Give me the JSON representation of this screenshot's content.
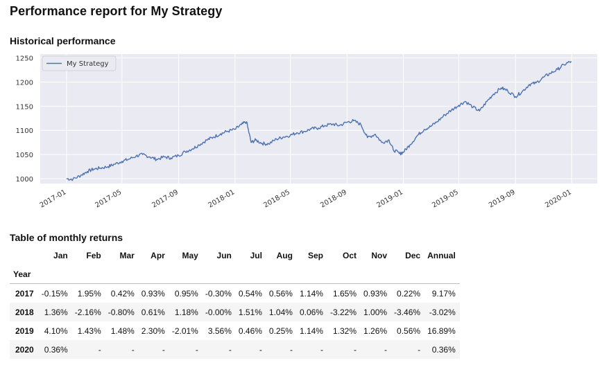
{
  "page": {
    "title": "Performance report for My Strategy",
    "historical_title": "Historical performance",
    "table_title": "Table of monthly returns"
  },
  "colors": {
    "plot_bg": "#eaeaf2",
    "line": "#4c72b0",
    "grid": "#ffffff",
    "row_alt": "#f5f5f5"
  },
  "chart_data": {
    "type": "line",
    "series": [
      {
        "name": "My Strategy",
        "x": [
          "2017-01-01",
          "2017-01-15",
          "2017-02-01",
          "2017-02-15",
          "2017-03-01",
          "2017-03-15",
          "2017-04-01",
          "2017-04-15",
          "2017-05-01",
          "2017-05-15",
          "2017-06-01",
          "2017-06-15",
          "2017-07-01",
          "2017-07-15",
          "2017-08-01",
          "2017-08-15",
          "2017-09-01",
          "2017-09-15",
          "2017-10-01",
          "2017-10-15",
          "2017-11-01",
          "2017-11-15",
          "2017-12-01",
          "2017-12-15",
          "2018-01-01",
          "2018-01-15",
          "2018-01-26",
          "2018-02-05",
          "2018-02-15",
          "2018-03-01",
          "2018-03-15",
          "2018-04-01",
          "2018-04-15",
          "2018-05-01",
          "2018-05-15",
          "2018-06-01",
          "2018-06-15",
          "2018-07-01",
          "2018-07-15",
          "2018-08-01",
          "2018-08-15",
          "2018-09-01",
          "2018-09-15",
          "2018-10-01",
          "2018-10-15",
          "2018-11-01",
          "2018-11-15",
          "2018-12-01",
          "2018-12-10",
          "2018-12-24",
          "2019-01-01",
          "2019-01-15",
          "2019-02-01",
          "2019-02-15",
          "2019-03-01",
          "2019-03-15",
          "2019-04-01",
          "2019-04-15",
          "2019-05-01",
          "2019-05-15",
          "2019-06-01",
          "2019-06-15",
          "2019-07-01",
          "2019-07-15",
          "2019-08-01",
          "2019-08-15",
          "2019-09-01",
          "2019-09-15",
          "2019-10-01",
          "2019-10-15",
          "2019-11-01",
          "2019-11-15",
          "2019-12-01",
          "2019-12-15",
          "2019-12-31"
        ],
        "values": [
          1000,
          999,
          1007,
          1015,
          1020,
          1022,
          1025,
          1030,
          1036,
          1040,
          1047,
          1050,
          1045,
          1040,
          1045,
          1043,
          1048,
          1056,
          1062,
          1070,
          1080,
          1086,
          1093,
          1098,
          1102,
          1112,
          1118,
          1075,
          1080,
          1073,
          1072,
          1082,
          1086,
          1090,
          1095,
          1098,
          1103,
          1105,
          1110,
          1113,
          1110,
          1117,
          1120,
          1112,
          1085,
          1092,
          1075,
          1080,
          1060,
          1052,
          1055,
          1070,
          1090,
          1102,
          1108,
          1118,
          1132,
          1142,
          1152,
          1160,
          1148,
          1140,
          1160,
          1175,
          1188,
          1182,
          1170,
          1180,
          1195,
          1198,
          1210,
          1218,
          1226,
          1236,
          1243
        ]
      }
    ],
    "xlabel": "",
    "ylabel": "",
    "xticks": [
      "2017-01",
      "2017-05",
      "2017-09",
      "2018-01",
      "2018-05",
      "2018-09",
      "2019-01",
      "2019-05",
      "2019-09",
      "2020-01"
    ],
    "yticks": [
      1000,
      1050,
      1100,
      1150,
      1200,
      1250
    ],
    "xlim": [
      "2016-11-05",
      "2020-02-25"
    ],
    "ylim": [
      990,
      1258
    ],
    "grid": true,
    "legend": "top-left"
  },
  "table": {
    "columns": [
      "Jan",
      "Feb",
      "Mar",
      "Apr",
      "May",
      "Jun",
      "Jul",
      "Aug",
      "Sep",
      "Oct",
      "Nov",
      "Dec",
      "Annual"
    ],
    "index_label": "Year",
    "rows": [
      {
        "year": "2017",
        "values": [
          "-0.15%",
          "1.95%",
          "0.42%",
          "0.93%",
          "0.95%",
          "-0.30%",
          "0.54%",
          "0.56%",
          "1.14%",
          "1.65%",
          "0.93%",
          "0.22%",
          "9.17%"
        ]
      },
      {
        "year": "2018",
        "values": [
          "1.36%",
          "-2.16%",
          "-0.80%",
          "0.61%",
          "1.18%",
          "-0.00%",
          "1.51%",
          "1.04%",
          "0.06%",
          "-3.22%",
          "1.00%",
          "-3.46%",
          "-3.02%"
        ]
      },
      {
        "year": "2019",
        "values": [
          "4.10%",
          "1.43%",
          "1.48%",
          "2.30%",
          "-2.01%",
          "3.56%",
          "0.46%",
          "0.25%",
          "1.14%",
          "1.32%",
          "1.26%",
          "0.56%",
          "16.89%"
        ]
      },
      {
        "year": "2020",
        "values": [
          "0.36%",
          "-",
          "-",
          "-",
          "-",
          "-",
          "-",
          "-",
          "-",
          "-",
          "-",
          "-",
          "0.36%"
        ]
      }
    ]
  }
}
